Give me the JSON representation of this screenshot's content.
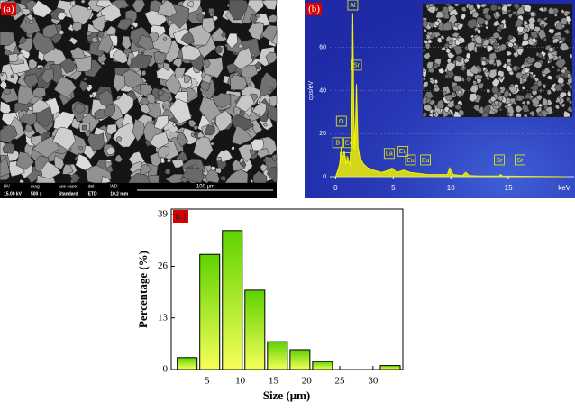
{
  "panels": {
    "a": {
      "label": "(a)",
      "info": [
        [
          "HV",
          "15.00 kV"
        ],
        [
          "mag",
          "500 x"
        ],
        [
          "use case",
          "Standard"
        ],
        [
          "det",
          "ETD"
        ],
        [
          "WD",
          "10.2 mm"
        ]
      ],
      "scale_bar": "100 μm"
    },
    "b": {
      "label": "(b)"
    },
    "c": {
      "label": "(c)"
    }
  },
  "chart_data": [
    {
      "type": "line",
      "y_label": "cps/eV",
      "x_label": "keV",
      "color": "#f2f200",
      "x": [
        0,
        0.2,
        0.35,
        0.5,
        0.6,
        0.75,
        0.9,
        1.05,
        1.25,
        1.4,
        1.49,
        1.58,
        1.68,
        1.81,
        1.95,
        2.1,
        2.4,
        2.8,
        3.3,
        4.0,
        4.6,
        4.9,
        5.3,
        5.9,
        6.5,
        7.2,
        8.0,
        9.0,
        9.7,
        9.9,
        10.2,
        11.0,
        11.3,
        11.6,
        12.5,
        14.2,
        14.3,
        14.5,
        16,
        18,
        20
      ],
      "y": [
        0,
        3,
        6,
        14,
        8,
        12,
        6,
        9,
        5,
        20,
        76,
        30,
        12,
        43,
        14,
        9,
        6,
        4,
        3,
        2,
        3,
        4,
        2,
        3,
        2,
        1.5,
        1,
        1,
        1,
        4,
        1,
        0.5,
        2,
        0.5,
        0.3,
        0.3,
        1,
        0.3,
        0.2,
        0.1,
        0
      ],
      "xlim": [
        -0.5,
        20.7
      ],
      "ylim": [
        0,
        80
      ],
      "xticks": [
        0,
        5,
        10,
        15
      ],
      "yticks": [
        0,
        20,
        40,
        60
      ],
      "annotations": [
        {
          "text": "Al",
          "x": 1.49,
          "y": 76
        },
        {
          "text": "Sr",
          "x": 1.81,
          "y": 48
        },
        {
          "text": "O",
          "x": 0.5,
          "y": 22
        },
        {
          "text": "B",
          "x": 0.18,
          "y": 12
        },
        {
          "text": "Eu",
          "x": 1.15,
          "y": 12
        },
        {
          "text": "La",
          "x": 0.83,
          "y": 5
        },
        {
          "text": "La",
          "x": 4.65,
          "y": 7
        },
        {
          "text": "Eu",
          "x": 5.85,
          "y": 8
        },
        {
          "text": "Eu",
          "x": 6.5,
          "y": 4
        },
        {
          "text": "Eu",
          "x": 7.8,
          "y": 4
        },
        {
          "text": "Sr",
          "x": 14.2,
          "y": 4
        },
        {
          "text": "Sr",
          "x": 16.0,
          "y": 4
        }
      ]
    },
    {
      "type": "histogram",
      "x_label": "Size (μm)",
      "y_label": "Percentage (%)",
      "color": [
        "#5ed300",
        "#f6ff5a"
      ],
      "bins": [
        0.3,
        3.7,
        7.1,
        10.5,
        13.9,
        17.3,
        20.7,
        24.1,
        27.5,
        30.9,
        34.3
      ],
      "counts": [
        3,
        29,
        35,
        20,
        7,
        5,
        2,
        0,
        0,
        1
      ],
      "xlim": [
        -0.4,
        34.5
      ],
      "ylim": [
        0,
        40.4
      ],
      "xticks": [
        5,
        10,
        15,
        20,
        25,
        30
      ],
      "yticks": [
        0,
        13,
        26,
        39
      ]
    }
  ]
}
